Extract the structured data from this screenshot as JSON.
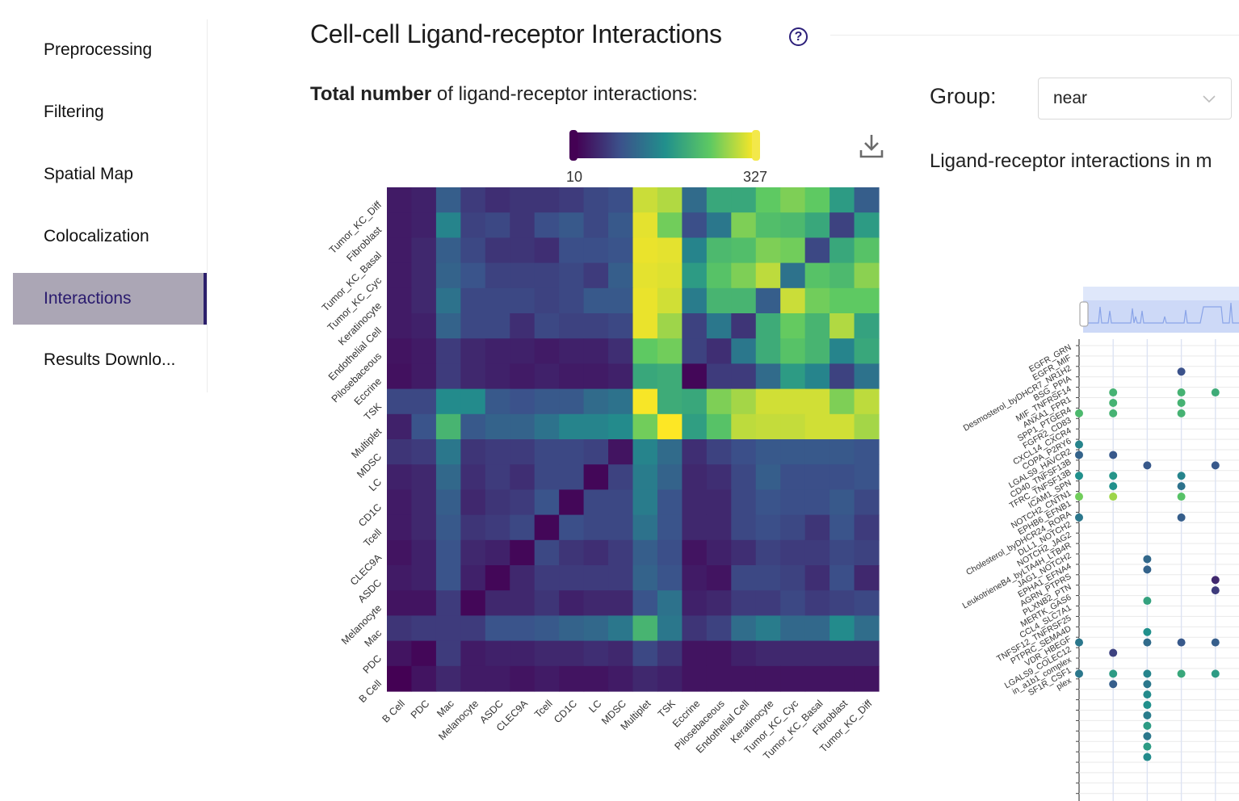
{
  "sidebar": {
    "items": [
      {
        "label": "Preprocessing",
        "active": false
      },
      {
        "label": "Filtering",
        "active": false
      },
      {
        "label": "Spatial Map",
        "active": false
      },
      {
        "label": "Colocalization",
        "active": false
      },
      {
        "label": "Interactions",
        "active": true
      },
      {
        "label": "Results Downlo...",
        "active": false
      }
    ]
  },
  "page": {
    "title": "Cell-cell Ligand-receptor Interactions",
    "help_icon": "question-circle-icon"
  },
  "total": {
    "label_bold": "Total number",
    "label_rest": " of ligand-receptor interactions:"
  },
  "colorbar": {
    "min_label": "10",
    "max_label": "327",
    "colors": [
      "#440154",
      "#3b528b",
      "#21908c",
      "#5ec962",
      "#fde725"
    ]
  },
  "download": {
    "icon": "download-icon"
  },
  "group": {
    "label": "Group:",
    "value": "near"
  },
  "lr": {
    "label": "Ligand-receptor interactions in m"
  },
  "chart_data": [
    {
      "type": "heatmap",
      "title": "",
      "x_categories": [
        "B Cell",
        "PDC",
        "Mac",
        "Melanocyte",
        "ASDC",
        "CLEC9A",
        "Tcell",
        "CD1C",
        "LC",
        "MDSC",
        "Multiplet",
        "TSK",
        "Eccrine",
        "Pilosebaceous",
        "Endothelial Cell",
        "Keratinocyte",
        "Tumor_KC_Cyc",
        "Tumor_KC_Basal",
        "Fibroblast",
        "Tumor_KC_Diff"
      ],
      "y_categories": [
        "Tumor_KC_Diff",
        "Fibroblast",
        "Tumor_KC_Basal",
        "Tumor_KC_Cyc",
        "Keratinocyte",
        "Endothelial Cell",
        "Pilosebaceous",
        "Eccrine",
        "TSK",
        "Multiplet",
        "MDSC",
        "LC",
        "CD1C",
        "Tcell",
        "CLEC9A",
        "ASDC",
        "Melanocyte",
        "Mac",
        "PDC",
        "B Cell"
      ],
      "value_range": [
        10,
        327
      ],
      "values": [
        [
          0.08,
          0.1,
          0.3,
          0.18,
          0.14,
          0.16,
          0.16,
          0.18,
          0.22,
          0.24,
          0.92,
          0.88,
          0.35,
          0.6,
          0.6,
          0.75,
          0.8,
          0.75,
          0.55,
          0.3
        ],
        [
          0.08,
          0.1,
          0.45,
          0.2,
          0.22,
          0.16,
          0.24,
          0.28,
          0.22,
          0.28,
          0.96,
          0.78,
          0.24,
          0.4,
          0.8,
          0.7,
          0.68,
          0.6,
          0.2,
          0.55
        ],
        [
          0.08,
          0.12,
          0.3,
          0.22,
          0.16,
          0.16,
          0.14,
          0.24,
          0.24,
          0.26,
          0.97,
          0.96,
          0.45,
          0.68,
          0.7,
          0.8,
          0.78,
          0.22,
          0.6,
          0.72
        ],
        [
          0.08,
          0.12,
          0.32,
          0.26,
          0.2,
          0.2,
          0.2,
          0.22,
          0.18,
          0.3,
          0.96,
          0.95,
          0.55,
          0.72,
          0.8,
          0.9,
          0.38,
          0.72,
          0.68,
          0.82
        ],
        [
          0.08,
          0.12,
          0.38,
          0.22,
          0.22,
          0.22,
          0.2,
          0.22,
          0.28,
          0.28,
          0.97,
          0.93,
          0.42,
          0.66,
          0.66,
          0.3,
          0.92,
          0.78,
          0.75,
          0.75
        ],
        [
          0.08,
          0.1,
          0.32,
          0.22,
          0.22,
          0.14,
          0.22,
          0.2,
          0.2,
          0.22,
          0.97,
          0.85,
          0.2,
          0.4,
          0.16,
          0.62,
          0.76,
          0.66,
          0.88,
          0.58
        ],
        [
          0.06,
          0.08,
          0.18,
          0.12,
          0.1,
          0.1,
          0.08,
          0.1,
          0.1,
          0.14,
          0.75,
          0.78,
          0.2,
          0.14,
          0.4,
          0.62,
          0.72,
          0.66,
          0.45,
          0.6
        ],
        [
          0.05,
          0.08,
          0.18,
          0.12,
          0.1,
          0.08,
          0.1,
          0.08,
          0.08,
          0.1,
          0.6,
          0.62,
          0.02,
          0.18,
          0.18,
          0.35,
          0.55,
          0.45,
          0.2,
          0.38
        ],
        [
          0.22,
          0.22,
          0.48,
          0.48,
          0.28,
          0.25,
          0.28,
          0.28,
          0.35,
          0.38,
          0.99,
          0.62,
          0.6,
          0.8,
          0.86,
          0.93,
          0.93,
          0.93,
          0.8,
          0.9
        ],
        [
          0.1,
          0.26,
          0.66,
          0.28,
          0.32,
          0.32,
          0.38,
          0.45,
          0.45,
          0.48,
          0.78,
          1.0,
          0.56,
          0.72,
          0.9,
          0.91,
          0.91,
          0.93,
          0.93,
          0.86
        ],
        [
          0.16,
          0.18,
          0.4,
          0.16,
          0.18,
          0.18,
          0.22,
          0.22,
          0.2,
          0.06,
          0.45,
          0.35,
          0.14,
          0.2,
          0.24,
          0.28,
          0.28,
          0.28,
          0.28,
          0.26
        ],
        [
          0.1,
          0.12,
          0.34,
          0.14,
          0.18,
          0.14,
          0.22,
          0.22,
          0.02,
          0.2,
          0.42,
          0.32,
          0.12,
          0.14,
          0.22,
          0.3,
          0.24,
          0.24,
          0.24,
          0.26
        ],
        [
          0.08,
          0.12,
          0.3,
          0.12,
          0.16,
          0.18,
          0.26,
          0.02,
          0.22,
          0.22,
          0.42,
          0.26,
          0.12,
          0.12,
          0.22,
          0.26,
          0.24,
          0.24,
          0.28,
          0.22
        ],
        [
          0.08,
          0.12,
          0.28,
          0.16,
          0.18,
          0.22,
          0.02,
          0.24,
          0.22,
          0.22,
          0.38,
          0.26,
          0.12,
          0.12,
          0.22,
          0.24,
          0.22,
          0.16,
          0.26,
          0.18
        ],
        [
          0.06,
          0.1,
          0.26,
          0.12,
          0.1,
          0.02,
          0.22,
          0.16,
          0.14,
          0.18,
          0.3,
          0.24,
          0.06,
          0.1,
          0.14,
          0.2,
          0.18,
          0.18,
          0.22,
          0.2
        ],
        [
          0.08,
          0.1,
          0.26,
          0.1,
          0.02,
          0.12,
          0.18,
          0.18,
          0.18,
          0.18,
          0.32,
          0.26,
          0.08,
          0.06,
          0.22,
          0.22,
          0.2,
          0.14,
          0.24,
          0.12
        ],
        [
          0.06,
          0.06,
          0.18,
          0.02,
          0.12,
          0.12,
          0.16,
          0.1,
          0.12,
          0.12,
          0.26,
          0.38,
          0.1,
          0.12,
          0.18,
          0.18,
          0.22,
          0.18,
          0.2,
          0.22
        ],
        [
          0.16,
          0.18,
          0.18,
          0.18,
          0.26,
          0.26,
          0.28,
          0.32,
          0.34,
          0.4,
          0.66,
          0.4,
          0.16,
          0.2,
          0.36,
          0.42,
          0.34,
          0.34,
          0.48,
          0.36
        ],
        [
          0.06,
          0.02,
          0.18,
          0.08,
          0.1,
          0.1,
          0.12,
          0.12,
          0.14,
          0.12,
          0.22,
          0.16,
          0.06,
          0.06,
          0.1,
          0.12,
          0.12,
          0.12,
          0.12,
          0.12
        ],
        [
          0.0,
          0.06,
          0.12,
          0.08,
          0.08,
          0.06,
          0.08,
          0.06,
          0.06,
          0.08,
          0.12,
          0.1,
          0.06,
          0.06,
          0.06,
          0.06,
          0.06,
          0.06,
          0.06,
          0.06
        ]
      ]
    },
    {
      "type": "scatter",
      "title": "",
      "y_categories": [
        "EGFR_GRN",
        "EGFR_MIF",
        "Desmosterol_byDHCR7_NR1H2",
        "BSG_PPIA",
        "MIF_TNFRSF14",
        "ANXA1_FPR1",
        "SPP1_PTGER4",
        "FGFR2_CD83",
        "CXCL14_CXCR4",
        "COPA_P2RY6",
        "LGALS9_HAVCR2",
        "CD40_TNFSF13B",
        "TFRC_TNFSF13B",
        "ICAM1_SPN",
        "NOTCH2_CNTN1",
        "EPHB6_EFNB1",
        "Cholesterol_byDHCR24_RORA",
        "DLL1_NOTCH2",
        "NOTCH2_JAG2",
        "LeukotrieneB4_byLTA4H_LTB4R",
        "JAG1_NOTCH2",
        "EPHA1_EFNA4",
        "AGRN_PTPRS",
        "PLXNB2_PTN",
        "MERTK_GAS6",
        "CCL4_SLC7A1",
        "TNFSF12_TNFRSF25",
        "PTPRC_SEMA4D",
        "VDR_HBEGF",
        "LGALS9_COLEC12",
        "in_a1b1_complex",
        "SF1R_CSF1",
        "plex"
      ],
      "points": [
        {
          "x": 3,
          "y": 2,
          "v": 0.25
        },
        {
          "x": 5,
          "y": 2,
          "v": 0.28
        },
        {
          "x": 1,
          "y": 4,
          "v": 0.65
        },
        {
          "x": 3,
          "y": 4,
          "v": 0.65
        },
        {
          "x": 4,
          "y": 4,
          "v": 0.62
        },
        {
          "x": 1,
          "y": 5,
          "v": 0.65
        },
        {
          "x": 3,
          "y": 5,
          "v": 0.65
        },
        {
          "x": 0,
          "y": 6,
          "v": 0.68
        },
        {
          "x": 1,
          "y": 6,
          "v": 0.65
        },
        {
          "x": 3,
          "y": 6,
          "v": 0.65
        },
        {
          "x": 0,
          "y": 9,
          "v": 0.45
        },
        {
          "x": 0,
          "y": 10,
          "v": 0.32
        },
        {
          "x": 1,
          "y": 10,
          "v": 0.28
        },
        {
          "x": 2,
          "y": 11,
          "v": 0.28
        },
        {
          "x": 4,
          "y": 11,
          "v": 0.28
        },
        {
          "x": 0,
          "y": 12,
          "v": 0.5
        },
        {
          "x": 1,
          "y": 12,
          "v": 0.52
        },
        {
          "x": 3,
          "y": 12,
          "v": 0.45
        },
        {
          "x": 1,
          "y": 13,
          "v": 0.5
        },
        {
          "x": 3,
          "y": 13,
          "v": 0.38
        },
        {
          "x": 0,
          "y": 14,
          "v": 0.78
        },
        {
          "x": 1,
          "y": 14,
          "v": 0.85
        },
        {
          "x": 3,
          "y": 14,
          "v": 0.72
        },
        {
          "x": 0,
          "y": 16,
          "v": 0.4
        },
        {
          "x": 3,
          "y": 16,
          "v": 0.3
        },
        {
          "x": 2,
          "y": 20,
          "v": 0.34
        },
        {
          "x": 2,
          "y": 21,
          "v": 0.32
        },
        {
          "x": 4,
          "y": 22,
          "v": 0.12
        },
        {
          "x": 4,
          "y": 23,
          "v": 0.18
        },
        {
          "x": 2,
          "y": 24,
          "v": 0.58
        },
        {
          "x": 2,
          "y": 27,
          "v": 0.5
        },
        {
          "x": 0,
          "y": 28,
          "v": 0.4
        },
        {
          "x": 2,
          "y": 28,
          "v": 0.35
        },
        {
          "x": 3,
          "y": 28,
          "v": 0.28
        },
        {
          "x": 4,
          "y": 28,
          "v": 0.3
        },
        {
          "x": 1,
          "y": 29,
          "v": 0.2
        },
        {
          "x": 0,
          "y": 31,
          "v": 0.4
        },
        {
          "x": 1,
          "y": 31,
          "v": 0.55
        },
        {
          "x": 2,
          "y": 31,
          "v": 0.45
        },
        {
          "x": 3,
          "y": 31,
          "v": 0.6
        },
        {
          "x": 4,
          "y": 31,
          "v": 0.55
        },
        {
          "x": 1,
          "y": 32,
          "v": 0.3
        },
        {
          "x": 2,
          "y": 32,
          "v": 0.4
        },
        {
          "x": 2,
          "y": 33,
          "v": 0.48
        },
        {
          "x": 2,
          "y": 34,
          "v": 0.5
        },
        {
          "x": 2,
          "y": 35,
          "v": 0.42
        },
        {
          "x": 2,
          "y": 36,
          "v": 0.55
        },
        {
          "x": 2,
          "y": 37,
          "v": 0.4
        },
        {
          "x": 2,
          "y": 38,
          "v": 0.55
        },
        {
          "x": 2,
          "y": 39,
          "v": 0.48
        }
      ]
    }
  ]
}
